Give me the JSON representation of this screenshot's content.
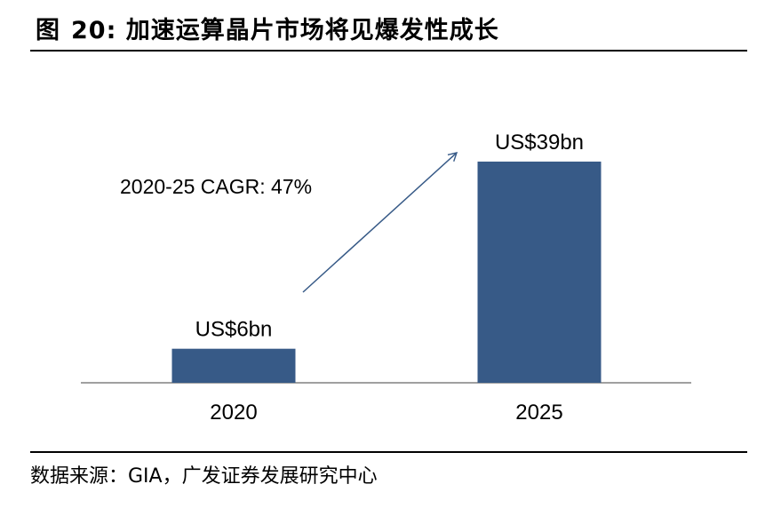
{
  "header": {
    "figure_label": "图",
    "figure_number": "20:",
    "title": "加速运算晶片市场将见爆发性成长"
  },
  "source": "数据来源：GIA，广发证券发展研究中心",
  "colors": {
    "bar": "#375A87",
    "axis": "#808080",
    "arrow": "#375A87"
  },
  "chart_data": {
    "type": "bar",
    "title": "加速运算晶片市场将见爆发性成长",
    "categories": [
      "2020",
      "2025"
    ],
    "values": [
      6,
      39
    ],
    "data_labels": [
      "US$6bn",
      "US$39bn"
    ],
    "unit": "US$bn",
    "annotation": "2020-25 CAGR: 47%",
    "ylim": [
      0,
      44
    ],
    "xlabel": "",
    "ylabel": "",
    "grid": false,
    "legend": false
  }
}
